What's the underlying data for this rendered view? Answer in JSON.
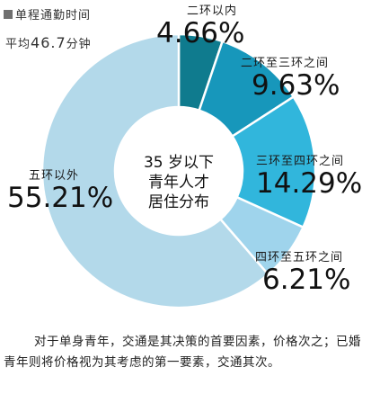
{
  "legend": {
    "title": "单程通勤时间",
    "avg_prefix": "平均",
    "avg_value": "46.7",
    "avg_unit": "分钟",
    "marker_color": "#707070"
  },
  "center_text": [
    "35 岁以下",
    "青年人才",
    "居住分布"
  ],
  "caption": "对于单身青年，交通是其决策的首要因素，价格次之；已婚青年则将价格视为其考虑的第一要素，交通其次。",
  "chart_data": {
    "type": "pie",
    "subtype": "donut",
    "title": "35 岁以下青年人才居住分布",
    "categories": [
      "二环以内",
      "二环至三环之间",
      "三环至四环之间",
      "四环至五环之间",
      "五环以外"
    ],
    "values": [
      4.66,
      9.63,
      14.29,
      6.21,
      55.21
    ],
    "value_labels": [
      "4.66%",
      "9.63%",
      "14.29%",
      "6.21%",
      "55.21%"
    ],
    "colors": [
      "#0f7b8e",
      "#1797bb",
      "#31b6dc",
      "#9fd4ec",
      "#b3d9ea"
    ],
    "start_angle_deg": 0
  }
}
